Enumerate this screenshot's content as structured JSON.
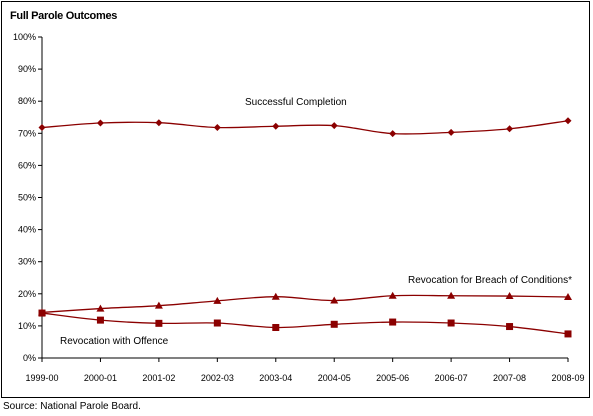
{
  "chart_data": {
    "type": "line",
    "title": "Full Parole Outcomes",
    "categories": [
      "1999-00",
      "2000-01",
      "2001-02",
      "2002-03",
      "2003-04",
      "2004-05",
      "2005-06",
      "2006-07",
      "2007-08",
      "2008-09"
    ],
    "ylim": [
      0,
      100
    ],
    "yticks": [
      "0%",
      "10%",
      "20%",
      "30%",
      "40%",
      "50%",
      "60%",
      "70%",
      "80%",
      "90%",
      "100%"
    ],
    "grid": false,
    "legend": "none",
    "series": [
      {
        "name": "Successful Completion",
        "marker": "diamond",
        "color": "#8B0000",
        "values": [
          71.8,
          73.2,
          73.3,
          71.8,
          72.2,
          72.4,
          69.9,
          70.3,
          71.4,
          73.9
        ]
      },
      {
        "name": "Revocation for Breach of Conditions*",
        "marker": "triangle",
        "color": "#8B0000",
        "values": [
          14.2,
          15.4,
          16.3,
          17.8,
          19.1,
          17.9,
          19.4,
          19.4,
          19.3,
          19.0
        ]
      },
      {
        "name": "Revocation with Offence",
        "marker": "square",
        "color": "#8B0000",
        "values": [
          14.0,
          11.8,
          10.8,
          10.9,
          9.5,
          10.5,
          11.2,
          10.9,
          9.8,
          7.5
        ]
      }
    ]
  },
  "source": "Source: National Parole Board."
}
